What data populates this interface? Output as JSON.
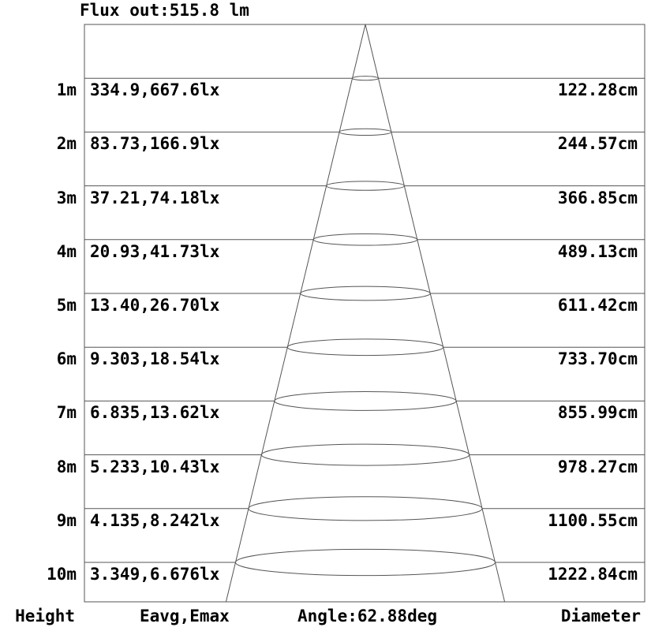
{
  "title": "Flux out:515.8 lm",
  "chart_data": {
    "type": "cone-diagram",
    "title": "Flux out:515.8 lm",
    "flux_out_lm": 515.8,
    "beam_angle_deg": 62.88,
    "columns": [
      "Height",
      "Eavg,Emax",
      "Angle:62.88deg",
      "Diameter"
    ],
    "footer": {
      "height_label": "Height",
      "eavg_label": "Eavg,Emax",
      "angle_label": "Angle:62.88deg",
      "diameter_label": "Diameter"
    },
    "rows": [
      {
        "height_m": 1,
        "height": "1m",
        "eavg_emax": "334.9,667.6lx",
        "diameter": "122.28cm"
      },
      {
        "height_m": 2,
        "height": "2m",
        "eavg_emax": "83.73,166.9lx",
        "diameter": "244.57cm"
      },
      {
        "height_m": 3,
        "height": "3m",
        "eavg_emax": "37.21,74.18lx",
        "diameter": "366.85cm"
      },
      {
        "height_m": 4,
        "height": "4m",
        "eavg_emax": "20.93,41.73lx",
        "diameter": "489.13cm"
      },
      {
        "height_m": 5,
        "height": "5m",
        "eavg_emax": "13.40,26.70lx",
        "diameter": "611.42cm"
      },
      {
        "height_m": 6,
        "height": "6m",
        "eavg_emax": "9.303,18.54lx",
        "diameter": "733.70cm"
      },
      {
        "height_m": 7,
        "height": "7m",
        "eavg_emax": "6.835,13.62lx",
        "diameter": "855.99cm"
      },
      {
        "height_m": 8,
        "height": "8m",
        "eavg_emax": "5.233,10.43lx",
        "diameter": "978.27cm"
      },
      {
        "height_m": 9,
        "height": "9m",
        "eavg_emax": "4.135,8.242lx",
        "diameter": "1100.55cm"
      },
      {
        "height_m": 10,
        "height": "10m",
        "eavg_emax": "3.349,6.676lx",
        "diameter": "1222.84cm"
      }
    ],
    "colors": {
      "line": "#555555",
      "text": "#000000",
      "background": "#ffffff"
    }
  }
}
